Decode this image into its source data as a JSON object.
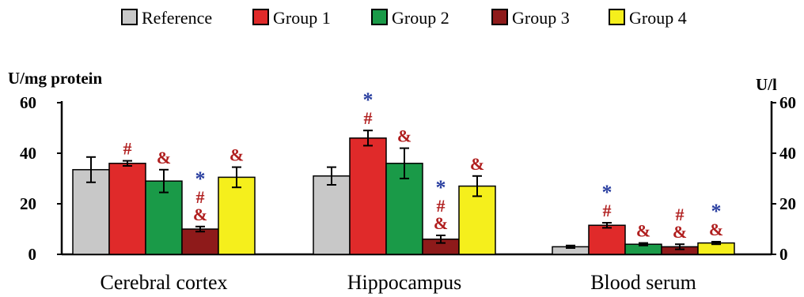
{
  "chart_data": {
    "type": "bar",
    "left_axis_label": "U/mg protein",
    "right_axis_label": "U/l",
    "ylim": [
      0,
      60
    ],
    "yticks": [
      0,
      20,
      40,
      60
    ],
    "categories": [
      "Cerebral cortex",
      "Hippocampus",
      "Blood serum"
    ],
    "legend_placement": "top",
    "grid": false,
    "series": [
      {
        "name": "Reference",
        "color": "#c8c8c8",
        "values": [
          33.5,
          31,
          3
        ],
        "errors": [
          5,
          3.5,
          0.5
        ],
        "annotations": [
          [],
          [],
          []
        ]
      },
      {
        "name": "Group 1",
        "color": "#e02a2a",
        "values": [
          36,
          46,
          11.5
        ],
        "errors": [
          1,
          3,
          1
        ],
        "annotations": [
          [
            "#"
          ],
          [
            "*",
            "#"
          ],
          [
            "*",
            "#"
          ]
        ]
      },
      {
        "name": "Group 2",
        "color": "#1a9a48",
        "values": [
          29,
          36,
          4
        ],
        "errors": [
          4.5,
          6,
          0.5
        ],
        "annotations": [
          [
            "&"
          ],
          [
            "&"
          ],
          [
            "&"
          ]
        ]
      },
      {
        "name": "Group 3",
        "color": "#8e1a1a",
        "values": [
          10,
          6,
          3
        ],
        "errors": [
          1,
          1.5,
          1
        ],
        "annotations": [
          [
            "*",
            "#",
            "&"
          ],
          [
            "*",
            "#",
            "&"
          ],
          [
            "#",
            "&"
          ]
        ]
      },
      {
        "name": "Group 4",
        "color": "#f5ef1c",
        "values": [
          30.5,
          27,
          4.5
        ],
        "errors": [
          4,
          4,
          0.5
        ],
        "annotations": [
          [
            "&"
          ],
          [
            "&"
          ],
          [
            "*",
            "&"
          ]
        ]
      }
    ],
    "symbol_colors": {
      "*": "#2a3fa0",
      "#": "#b01e1e",
      "&": "#b01e1e"
    }
  }
}
